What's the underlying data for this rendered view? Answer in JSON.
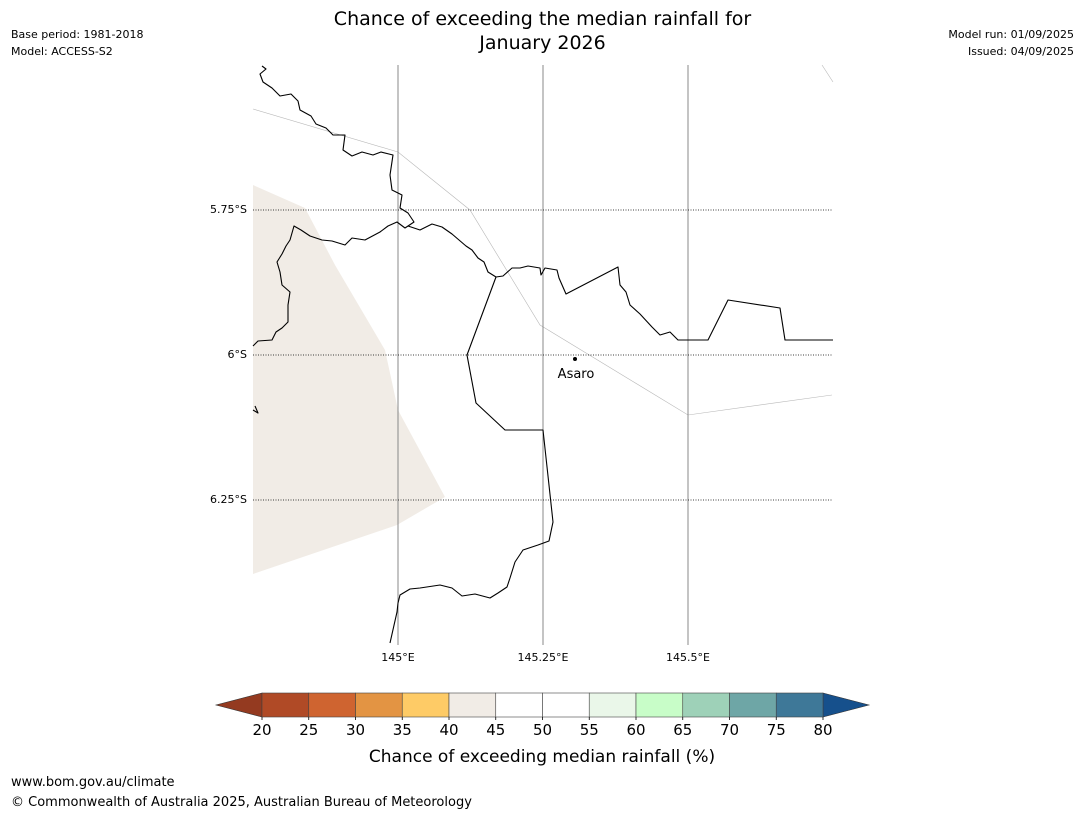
{
  "header": {
    "title_line1": "Chance of exceeding the median rainfall for",
    "title_line2": "January 2026",
    "base_period": "Base period: 1981-2018",
    "model": "Model: ACCESS-S2",
    "model_run": "Model run: 01/09/2025",
    "issued": "Issued: 04/09/2025"
  },
  "map": {
    "lat_labels": [
      "5.75°S",
      "6°S",
      "6.25°S"
    ],
    "lon_labels": [
      "145°E",
      "145.25°E",
      "145.5°E"
    ],
    "places": [
      {
        "name": "Asaro"
      }
    ],
    "shaded_region_color": "#f1ece6",
    "border_color": "#000000",
    "gridline_color": "#888888"
  },
  "colorbar": {
    "title": "Chance of exceeding median rainfall (%)",
    "ticks": [
      "20",
      "25",
      "30",
      "35",
      "40",
      "45",
      "50",
      "55",
      "60",
      "65",
      "70",
      "75",
      "80"
    ],
    "low_extend_color": "#943a20",
    "high_extend_color": "#16508c",
    "bins": [
      {
        "from": 20,
        "to": 25,
        "color": "#b04a26"
      },
      {
        "from": 25,
        "to": 30,
        "color": "#cf6430"
      },
      {
        "from": 30,
        "to": 35,
        "color": "#e39443"
      },
      {
        "from": 35,
        "to": 40,
        "color": "#fecb66"
      },
      {
        "from": 40,
        "to": 45,
        "color": "#f1ece6"
      },
      {
        "from": 45,
        "to": 50,
        "color": "#ffffff"
      },
      {
        "from": 50,
        "to": 55,
        "color": "#ffffff"
      },
      {
        "from": 55,
        "to": 60,
        "color": "#eaf7e9"
      },
      {
        "from": 60,
        "to": 65,
        "color": "#c8fdc8"
      },
      {
        "from": 65,
        "to": 70,
        "color": "#9ed1b8"
      },
      {
        "from": 70,
        "to": 75,
        "color": "#6ea6a6"
      },
      {
        "from": 75,
        "to": 80,
        "color": "#3e7898"
      }
    ]
  },
  "footer": {
    "url": "www.bom.gov.au/climate",
    "copyright": "© Commonwealth of Australia 2025, Australian Bureau of Meteorology"
  }
}
